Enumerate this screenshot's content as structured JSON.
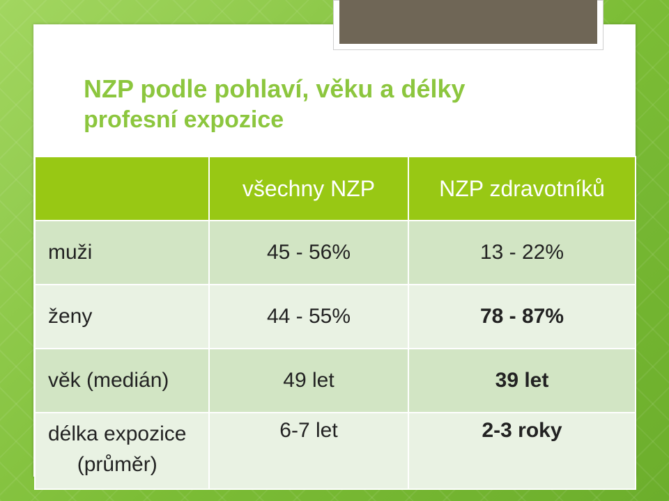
{
  "title": {
    "line1": "NZP podle pohlaví, věku a délky",
    "line2": "profesní expozice"
  },
  "table": {
    "columns": [
      "",
      "všechny NZP",
      "NZP zdravotníků"
    ],
    "rows": [
      {
        "label": "muži",
        "all": "45 - 56%",
        "health": "13 - 22%"
      },
      {
        "label": "ženy",
        "all": "44 - 55%",
        "health": "78 - 87%"
      },
      {
        "label": "věk (medián)",
        "all": "49 let",
        "health": "39 let"
      },
      {
        "label_line1": "délka expozice",
        "label_line2": "(průměr)",
        "all": "6-7 let",
        "health": "2-3 roky"
      }
    ]
  },
  "colors": {
    "title": "#8cc63e",
    "header_bg": "#98c814",
    "row_odd": "#d2e5c4",
    "row_even": "#e9f2e3",
    "tab": "#6f6656",
    "background": "#86c440"
  }
}
